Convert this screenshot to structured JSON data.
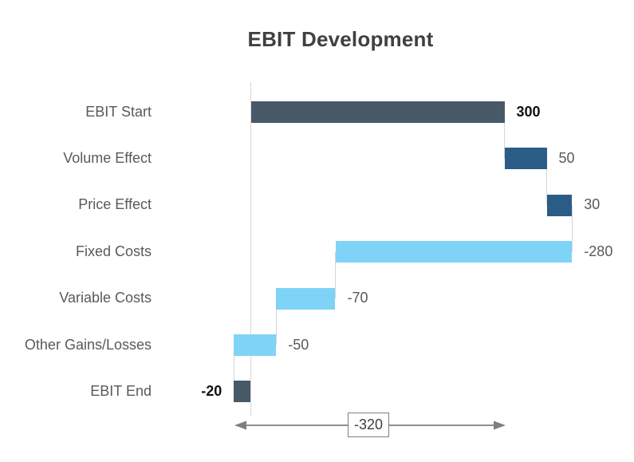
{
  "chart_data": {
    "type": "waterfall",
    "orientation": "horizontal",
    "title": "EBIT Development",
    "categories": [
      "EBIT Start",
      "Volume Effect",
      "Price Effect",
      "Fixed Costs",
      "Variable Costs",
      "Other Gains/Losses",
      "EBIT End"
    ],
    "values": [
      300,
      50,
      30,
      -280,
      -70,
      -50,
      -20
    ],
    "roles": [
      "total",
      "increase",
      "increase",
      "decrease",
      "decrease",
      "decrease",
      "total"
    ],
    "value_labels": [
      "300",
      "50",
      "30",
      "-280",
      "-70",
      "-50",
      "-20"
    ],
    "baseline_value": 0,
    "value_range": [
      -20,
      380
    ],
    "grid": false,
    "legend": false,
    "bridge": {
      "label": "-320",
      "from_category": "EBIT Start",
      "to_category": "EBIT End",
      "from_value": 300,
      "to_value": -20
    },
    "colors": {
      "total": "#485968",
      "increase": "#2B5C87",
      "decrease": "#7ED3F7",
      "axis": "#D9D9D9",
      "connector": "#D6D6D6",
      "arrow": "#7F7F7F",
      "label": "#595959",
      "emphasis": "#111111",
      "title": "#404040"
    }
  }
}
